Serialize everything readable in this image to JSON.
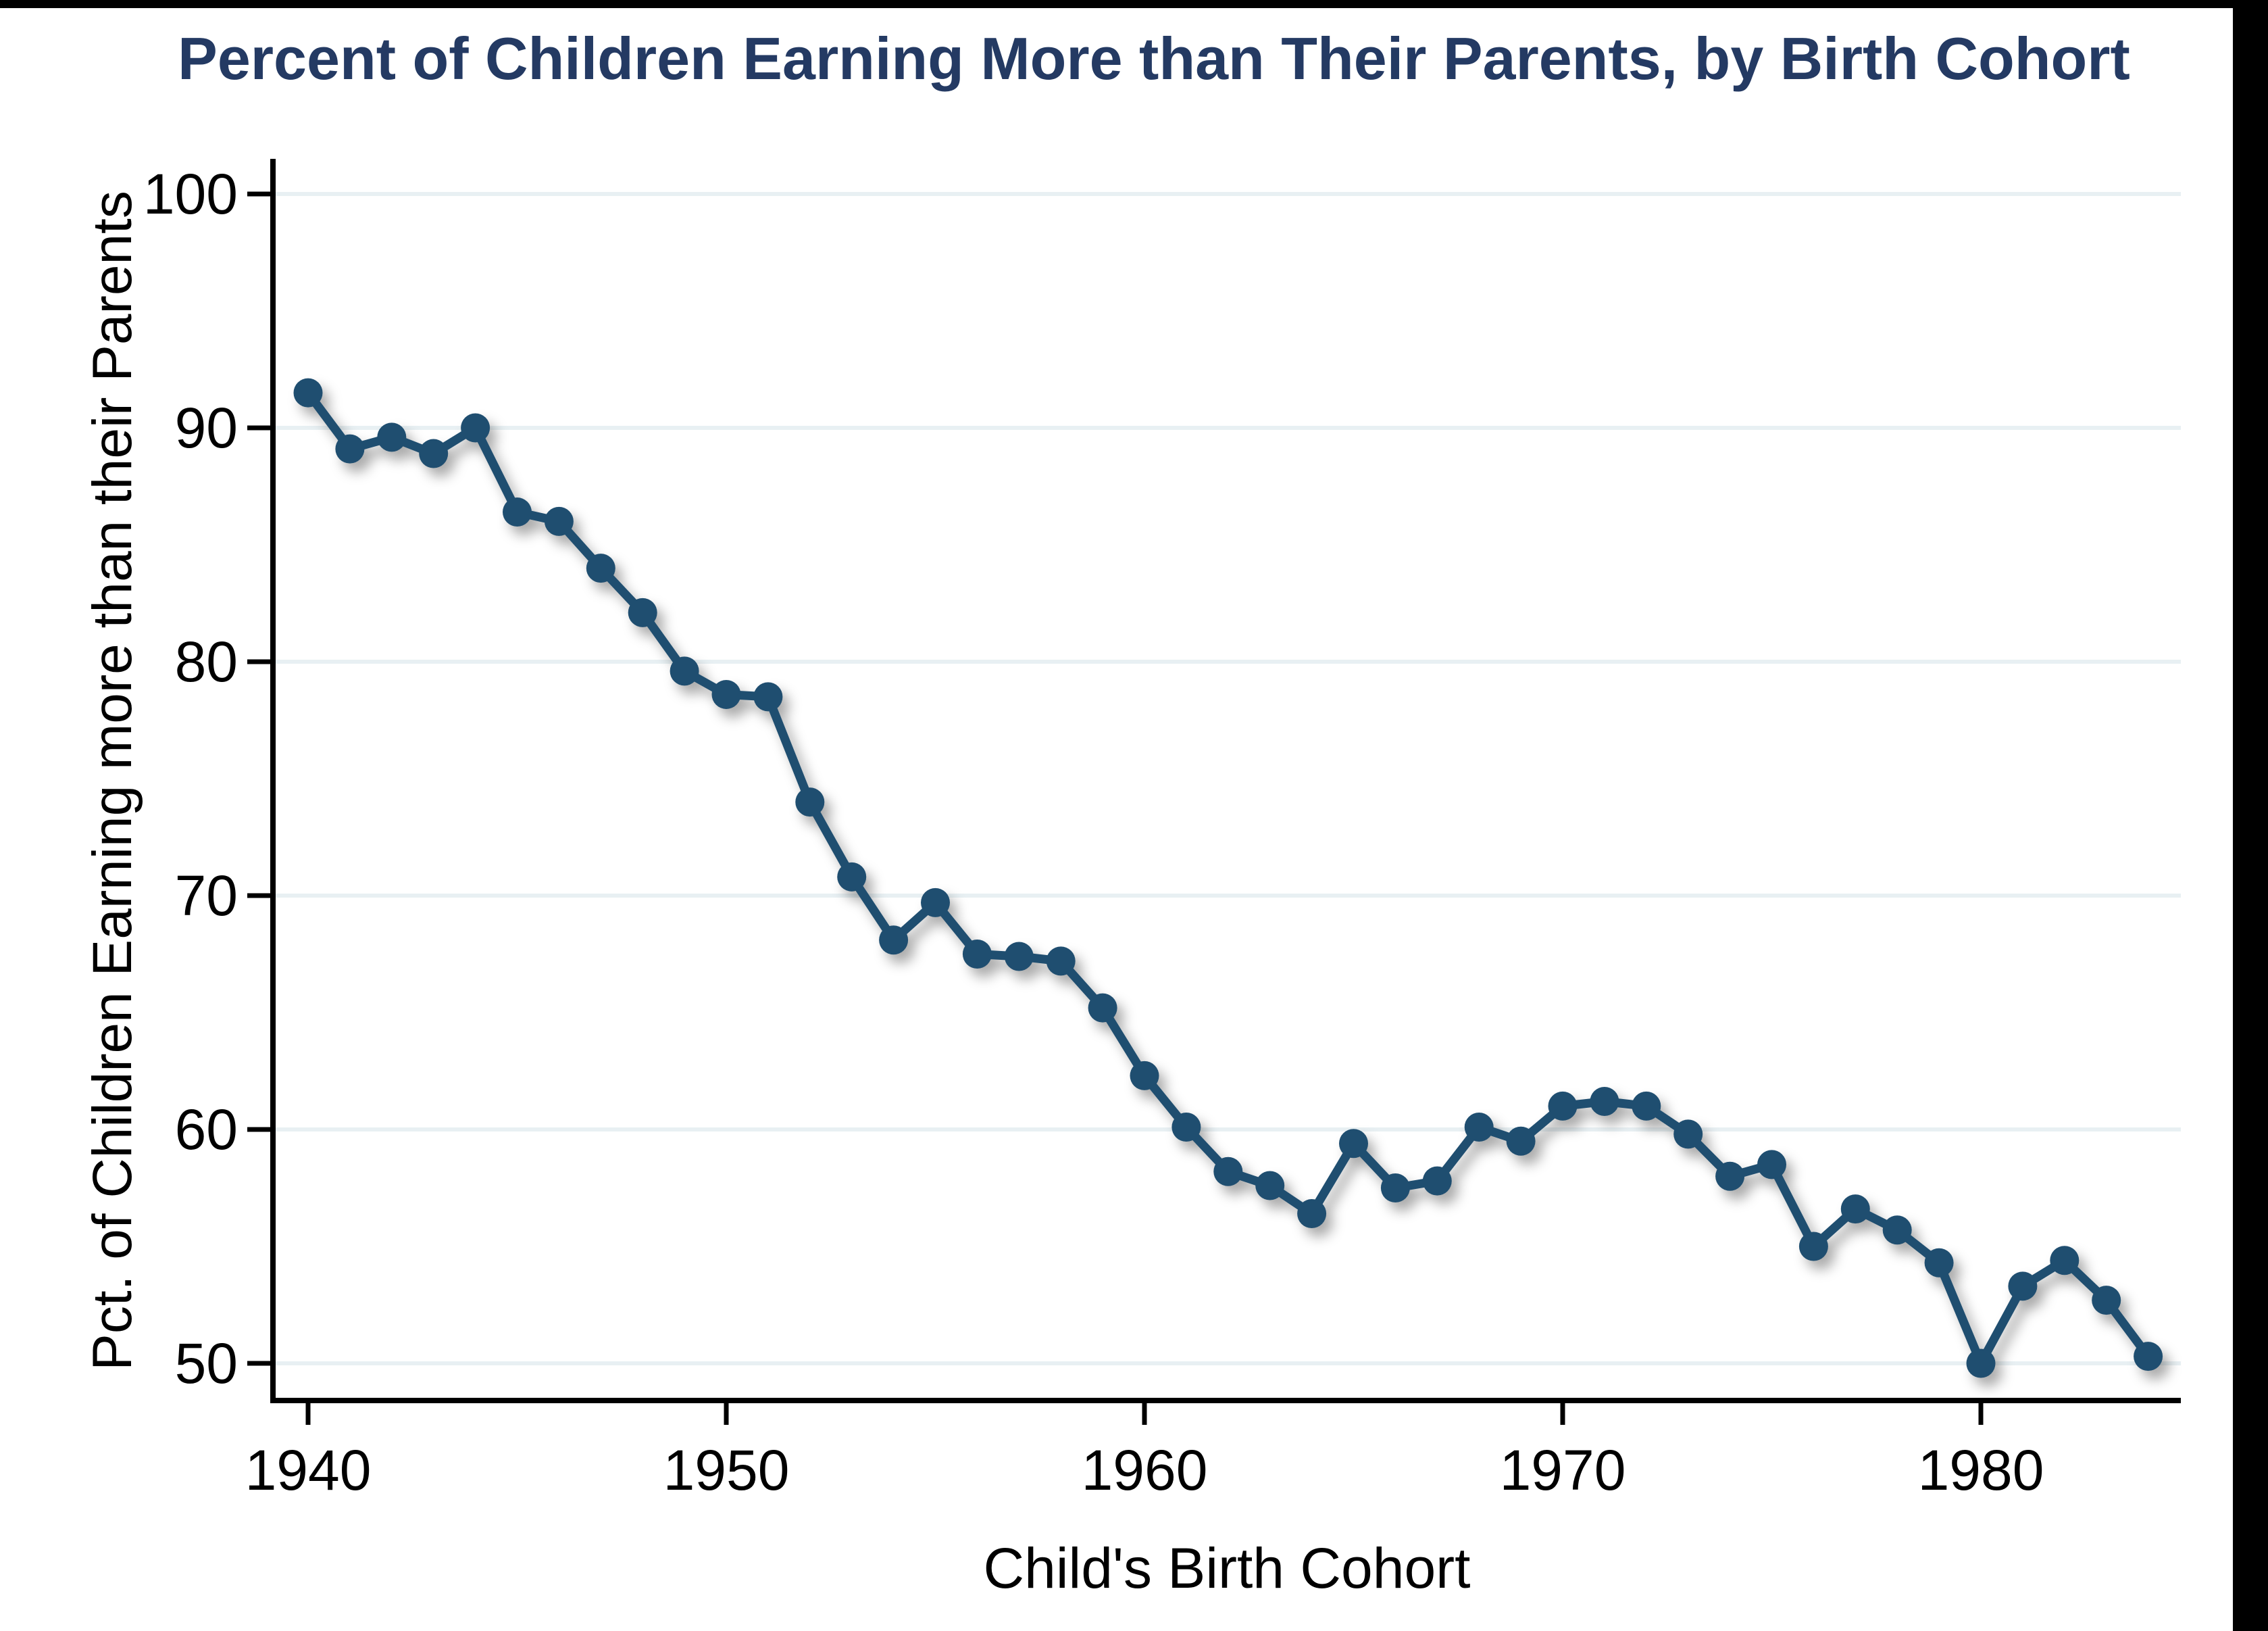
{
  "chart_data": {
    "type": "line",
    "title": "Percent of Children Earning More than Their Parents, by Birth Cohort",
    "xlabel": "Child's Birth Cohort",
    "ylabel": "Pct. of Children Earning more than their Parents",
    "series_name": "Percent of children earning more than their parents",
    "x": [
      1940,
      1941,
      1942,
      1943,
      1944,
      1945,
      1946,
      1947,
      1948,
      1949,
      1950,
      1951,
      1952,
      1953,
      1954,
      1955,
      1956,
      1957,
      1958,
      1959,
      1960,
      1961,
      1962,
      1963,
      1964,
      1965,
      1966,
      1967,
      1968,
      1969,
      1970,
      1971,
      1972,
      1973,
      1974,
      1975,
      1976,
      1977,
      1978,
      1979,
      1980,
      1981,
      1982,
      1983,
      1984
    ],
    "values": [
      91.5,
      89.1,
      89.6,
      88.9,
      90.0,
      86.4,
      86.0,
      84.0,
      82.1,
      79.6,
      78.6,
      78.5,
      74.0,
      70.8,
      68.1,
      69.7,
      67.5,
      67.4,
      67.2,
      65.2,
      62.3,
      60.1,
      58.2,
      57.6,
      56.4,
      59.4,
      57.5,
      57.8,
      60.1,
      59.5,
      61.0,
      61.2,
      61.0,
      59.8,
      58.0,
      58.5,
      55.0,
      56.6,
      55.7,
      54.3,
      50.0,
      53.3,
      54.4,
      52.7,
      50.3
    ],
    "xticks": [
      1940,
      1950,
      1960,
      1970,
      1980
    ],
    "yticks": [
      50,
      60,
      70,
      80,
      90,
      100
    ],
    "xlim": [
      1939.2,
      1984.8
    ],
    "ylim": [
      48.4,
      101.6
    ],
    "grid": "horizontal",
    "legend": "none",
    "colors": {
      "line": "#1F4E70",
      "marker": "#1F4E70",
      "title": "#243A63",
      "grid": "#E8F0F3",
      "axis": "#000000",
      "tick_label": "#000000",
      "background": "#FFFFFF",
      "frame": "#000000"
    }
  }
}
